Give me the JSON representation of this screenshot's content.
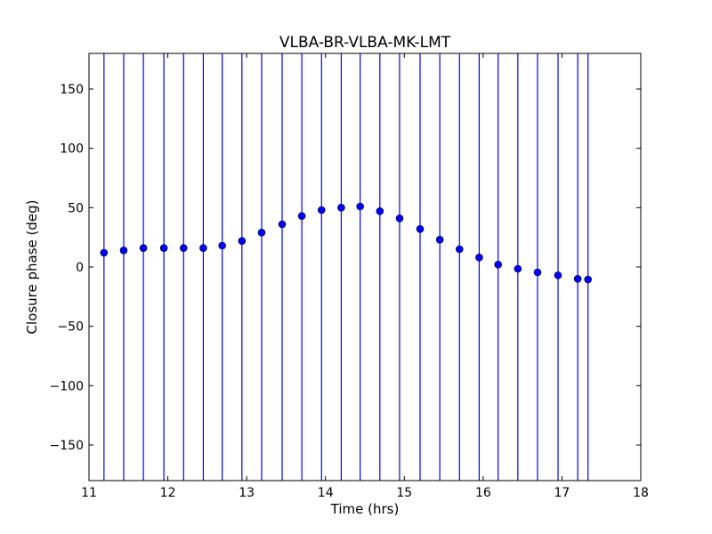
{
  "chart_data": {
    "type": "scatter",
    "title": "VLBA-BR-VLBA-MK-LMT",
    "xlabel": "Time (hrs)",
    "ylabel": "Closure phase (deg)",
    "xlim": [
      11,
      18
    ],
    "ylim": [
      -180,
      180
    ],
    "xticks": [
      11,
      12,
      13,
      14,
      15,
      16,
      17,
      18
    ],
    "yticks": [
      -150,
      -100,
      -50,
      0,
      50,
      100,
      150
    ],
    "ytick_labels": [
      "−150",
      "−100",
      "−50",
      "0",
      "50",
      "100",
      "150"
    ],
    "grid": false,
    "color": "#0000ff",
    "error_bars": "vertical, extending beyond the y-axis range",
    "x": [
      11.19,
      11.44,
      11.69,
      11.95,
      12.2,
      12.45,
      12.69,
      12.94,
      13.19,
      13.45,
      13.7,
      13.95,
      14.2,
      14.44,
      14.69,
      14.94,
      15.2,
      15.45,
      15.7,
      15.95,
      16.19,
      16.44,
      16.69,
      16.95,
      17.2,
      17.33
    ],
    "y": [
      12,
      14,
      16,
      16,
      16,
      16,
      18,
      22,
      29,
      36,
      43,
      48,
      50,
      51,
      47,
      41,
      32,
      23,
      15,
      8,
      2,
      -1.5,
      -4.5,
      -7,
      -10,
      -10.5
    ]
  }
}
